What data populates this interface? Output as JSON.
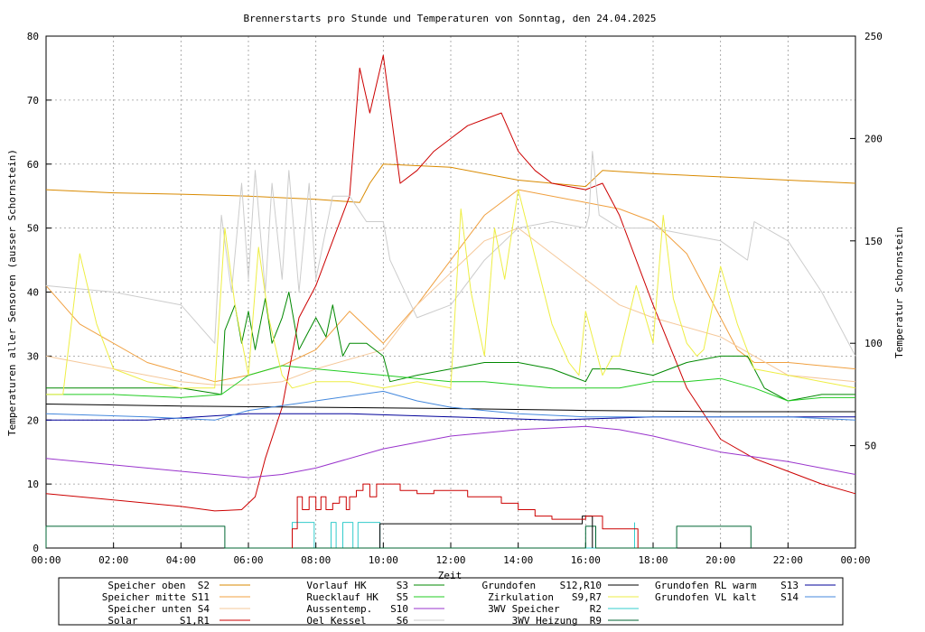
{
  "chart_data": {
    "type": "line",
    "title": "Brennerstarts pro Stunde und Temperaturen von Sonntag, den 24.04.2025",
    "xlabel": "Zeit",
    "ylabel": "Temperaturen aller Sensoren (ausser Schornstein)",
    "y2label": "Temperatur Schornstein",
    "xticks": [
      "00:00",
      "02:00",
      "04:00",
      "06:00",
      "08:00",
      "10:00",
      "12:00",
      "14:00",
      "16:00",
      "18:00",
      "20:00",
      "22:00",
      "00:00"
    ],
    "yticks": [
      "0",
      "10",
      "20",
      "30",
      "40",
      "50",
      "60",
      "70",
      "80"
    ],
    "y2ticks": [
      "50",
      "100",
      "150",
      "200",
      "250"
    ],
    "xlim": [
      0,
      24
    ],
    "ylim": [
      0,
      80
    ],
    "y2lim": [
      0,
      250
    ],
    "grid": true,
    "legend_position": "bottom",
    "colors": {
      "S2": "#d98a00",
      "S11": "#f0a040",
      "S4": "#f5c89a",
      "S1R1": "#cc0000",
      "S3": "#008800",
      "S5": "#22cc22",
      "S10": "#9933cc",
      "S6": "#cccccc",
      "S12R10": "#000000",
      "S9R7": "#eeee44",
      "R2": "#33cccc",
      "R9": "#006633",
      "S13": "#000099",
      "S14": "#4488dd",
      "y2label": "#ff66ff"
    },
    "legend": [
      {
        "key": "S2",
        "text": "Speicher oben  S2"
      },
      {
        "key": "S11",
        "text": "Speicher mitte S11"
      },
      {
        "key": "S4",
        "text": "Speicher unten S4"
      },
      {
        "key": "S1R1",
        "text": "Solar       S1,R1"
      },
      {
        "key": "S3",
        "text": "Vorlauf HK     S3"
      },
      {
        "key": "S5",
        "text": "Ruecklauf HK   S5"
      },
      {
        "key": "S10",
        "text": "Aussentemp.   S10"
      },
      {
        "key": "S6",
        "text": "Oel Kessel     S6"
      },
      {
        "key": "S12R10",
        "text": "Grundofen    S12,R10"
      },
      {
        "key": "S9R7",
        "text": "Zirkulation   S9,R7"
      },
      {
        "key": "R2",
        "text": "3WV Speicher     R2"
      },
      {
        "key": "R9",
        "text": "3WV Heizung  R9"
      },
      {
        "key": "S13",
        "text": "Grundofen RL warm    S13"
      },
      {
        "key": "S14",
        "text": "Grundofen VL kalt    S14"
      }
    ],
    "series": [
      {
        "key": "S2",
        "x": [
          0,
          2,
          4,
          6,
          8,
          9.3,
          9.6,
          10,
          12,
          14,
          16,
          16.5,
          18,
          20,
          22,
          24
        ],
        "y": [
          56,
          55.5,
          55.3,
          55,
          54.5,
          54,
          57,
          60,
          59.5,
          57.5,
          56.5,
          59,
          58.5,
          58,
          57.5,
          57
        ]
      },
      {
        "key": "S11",
        "x": [
          0,
          1,
          3,
          5,
          6,
          7,
          8,
          9,
          10,
          11,
          12,
          13,
          14,
          15,
          16,
          17,
          18,
          19,
          20,
          20.5,
          21,
          22,
          24
        ],
        "y": [
          41,
          35,
          29,
          26,
          27,
          28.5,
          31,
          37,
          32,
          38,
          45,
          52,
          56,
          55,
          54,
          53,
          51,
          46,
          36,
          31,
          29,
          29,
          28
        ]
      },
      {
        "key": "S4",
        "x": [
          0,
          2,
          4,
          5,
          6,
          7,
          8,
          10,
          11,
          12,
          13,
          14,
          15,
          16,
          17,
          18,
          20,
          21,
          22,
          24
        ],
        "y": [
          30,
          28,
          26,
          25.5,
          25.5,
          26,
          28,
          31,
          38,
          43,
          48,
          50,
          46,
          42,
          38,
          36,
          33,
          30,
          27,
          26
        ]
      },
      {
        "key": "S1R1",
        "x": [
          0,
          2,
          4,
          5,
          5.8,
          6.2,
          6.5,
          7,
          7.5,
          8,
          8.5,
          9,
          9.3,
          9.6,
          10,
          10.5,
          11,
          11.5,
          12,
          12.5,
          13,
          13.5,
          14,
          14.5,
          15,
          16,
          16.5,
          17,
          18,
          19,
          20,
          21,
          22,
          23,
          24
        ],
        "y": [
          8.5,
          7.5,
          6.5,
          5.8,
          6,
          8,
          14,
          22,
          36,
          41,
          48,
          55,
          75,
          68,
          77,
          57,
          59,
          62,
          64,
          66,
          67,
          68,
          62,
          59,
          57,
          56,
          57,
          52,
          38,
          25,
          17,
          14,
          12,
          10,
          8.5
        ]
      },
      {
        "key": "S3",
        "x": [
          0,
          2,
          4,
          5.2,
          5.3,
          5.6,
          5.8,
          6,
          6.2,
          6.5,
          6.7,
          7,
          7.2,
          7.5,
          7.8,
          8,
          8.3,
          8.5,
          8.8,
          9,
          9.5,
          10,
          10.2,
          11,
          12,
          13,
          14,
          15,
          16,
          16.2,
          17,
          18,
          19,
          20,
          20.8,
          21.3,
          22,
          23,
          24
        ],
        "y": [
          25,
          25,
          25,
          24,
          34,
          38,
          32,
          37,
          31,
          39,
          32,
          36,
          40,
          31,
          34,
          36,
          33,
          38,
          30,
          32,
          32,
          30,
          26,
          27,
          28,
          29,
          29,
          28,
          26,
          28,
          28,
          27,
          29,
          30,
          30,
          25,
          23,
          24,
          24
        ]
      },
      {
        "key": "S5",
        "x": [
          0,
          2,
          4,
          5.2,
          6,
          7,
          8,
          9,
          10,
          11,
          12,
          13,
          14,
          15,
          16,
          17,
          18,
          19,
          20,
          21,
          22,
          23,
          24
        ],
        "y": [
          24,
          24,
          23.5,
          24,
          27,
          28.5,
          28,
          27.5,
          27,
          26.5,
          26,
          26,
          25.5,
          25,
          25,
          25,
          26,
          26,
          26.5,
          25,
          23,
          23.5,
          23.5
        ]
      },
      {
        "key": "S10",
        "x": [
          0,
          2,
          4,
          6,
          7,
          8,
          10,
          12,
          14,
          16,
          17,
          18,
          20,
          22,
          24
        ],
        "y": [
          14,
          13,
          12,
          11,
          11.5,
          12.5,
          15.5,
          17.5,
          18.5,
          19,
          18.5,
          17.5,
          15,
          13.5,
          11.5
        ]
      },
      {
        "key": "S6",
        "x": [
          0,
          2,
          4,
          5,
          5.2,
          5.5,
          5.8,
          6,
          6.2,
          6.5,
          6.7,
          7,
          7.2,
          7.5,
          7.8,
          8,
          8.5,
          9,
          9.5,
          10,
          10.2,
          11,
          12,
          13,
          14,
          15,
          16,
          16.1,
          16.2,
          16.4,
          17,
          18,
          19,
          20,
          20.8,
          21,
          22,
          23,
          24
        ],
        "y": [
          41,
          40,
          38,
          32,
          52,
          40,
          57,
          42,
          59,
          40,
          57,
          42,
          59,
          40,
          57,
          42,
          55,
          55,
          51,
          51,
          45,
          36,
          38,
          45,
          50,
          51,
          50,
          52,
          62,
          52,
          50,
          50,
          49,
          48,
          45,
          51,
          48,
          40,
          30
        ]
      },
      {
        "key": "S12R10",
        "x": [
          0,
          4,
          8,
          12,
          16,
          20,
          24
        ],
        "y": [
          22.5,
          22.2,
          22.0,
          21.8,
          21.5,
          21.3,
          21.3
        ]
      },
      {
        "key": "S9R7",
        "x": [
          0,
          0.5,
          1,
          1.5,
          2,
          2.5,
          3,
          4,
          5,
          5.3,
          5.6,
          6,
          6.3,
          6.6,
          7,
          7.3,
          8,
          9,
          10,
          11,
          12,
          12.3,
          12.6,
          13,
          13.3,
          13.6,
          14,
          15,
          15.5,
          15.8,
          16,
          16.5,
          16.8,
          17,
          17.5,
          18,
          18.3,
          18.6,
          19,
          19.3,
          19.5,
          20,
          20.5,
          21,
          22,
          23,
          24
        ],
        "y": [
          24,
          24,
          46,
          35,
          28,
          27,
          26,
          25,
          25,
          50,
          38,
          27,
          47,
          36,
          27,
          25,
          26,
          26,
          25,
          26,
          25,
          53,
          40,
          30,
          50,
          42,
          56,
          35,
          29,
          27,
          37,
          27,
          30,
          30,
          41,
          32,
          52,
          39,
          32,
          30,
          31,
          44,
          35,
          28,
          27,
          26,
          25
        ]
      },
      {
        "key": "S13",
        "x": [
          0,
          3,
          6,
          9,
          12,
          15,
          18,
          21,
          24
        ],
        "y": [
          20,
          20,
          21,
          21,
          20.5,
          20,
          20.5,
          20.5,
          20.5
        ]
      },
      {
        "key": "S14",
        "x": [
          0,
          3,
          5,
          6,
          8,
          10,
          11,
          12,
          14,
          16,
          18,
          20,
          22,
          24
        ],
        "y": [
          21,
          20.5,
          20,
          21.5,
          23,
          24.5,
          23,
          22,
          21,
          20.5,
          20.5,
          20.5,
          20.5,
          20
        ]
      }
    ],
    "steps": [
      {
        "key": "R2",
        "x": [
          7.3,
          7.3,
          7.95,
          7.95,
          8.45,
          8.45,
          8.6,
          8.6,
          8.8,
          8.8,
          9.1,
          9.1,
          9.25,
          9.25,
          9.9,
          9.9,
          17.45,
          17.45
        ],
        "y": [
          0,
          4,
          4,
          0,
          0,
          4,
          4,
          0,
          0,
          4,
          4,
          0,
          0,
          4,
          4,
          0,
          0,
          4
        ]
      },
      {
        "key": "R9",
        "x": [
          0,
          0,
          5.3,
          5.3,
          16.0,
          16.0,
          16.3,
          16.3,
          18.7,
          18.7,
          20.9,
          20.9
        ],
        "y": [
          0,
          3.4,
          3.4,
          0,
          0,
          3.4,
          3.4,
          0,
          0,
          3.4,
          3.4,
          0
        ]
      },
      {
        "key": "S12R10",
        "x": [
          9.9,
          9.9,
          15.9,
          15.9,
          16.2,
          16.2
        ],
        "y": [
          0,
          3.8,
          3.8,
          5,
          5,
          0
        ]
      }
    ],
    "burner_starts": {
      "key": "S1R1",
      "x": [
        7.3,
        7.45,
        7.6,
        7.8,
        8.0,
        8.15,
        8.3,
        8.5,
        8.7,
        8.9,
        9.0,
        9.2,
        9.4,
        9.6,
        9.8,
        10.0,
        10.5,
        11,
        11.5,
        12,
        12.5,
        13,
        13.5,
        14,
        14.5,
        15,
        15.5,
        16,
        16.5,
        17,
        17.4
      ],
      "y": [
        3,
        8,
        6,
        8,
        6,
        8,
        6,
        7,
        8,
        6,
        8,
        9,
        10,
        8,
        10,
        10,
        9,
        8.5,
        9,
        9,
        8,
        8,
        7,
        6,
        5,
        4.5,
        4.5,
        5,
        3,
        3,
        3
      ]
    }
  }
}
